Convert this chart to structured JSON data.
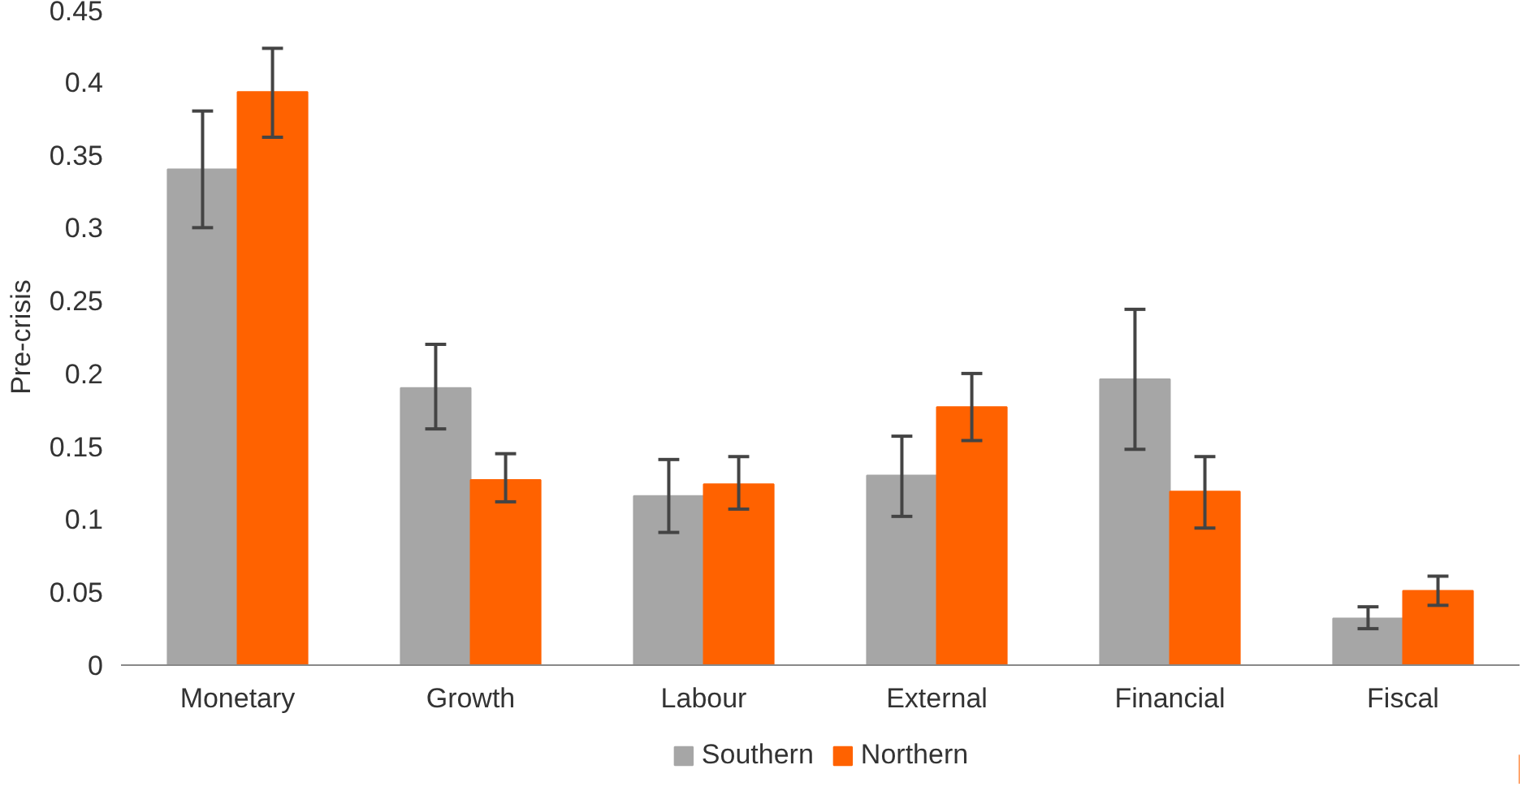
{
  "chart_data": {
    "type": "bar",
    "ylabel": "Pre-crisis",
    "categories": [
      "Monetary",
      "Growth",
      "Labour",
      "External",
      "Financial",
      "Fiscal"
    ],
    "series": [
      {
        "name": "Southern",
        "color": "#a6a6a6",
        "values": [
          0.34,
          0.19,
          0.116,
          0.13,
          0.196,
          0.032
        ],
        "errors": [
          [
            0.3,
            0.38
          ],
          [
            0.162,
            0.22
          ],
          [
            0.091,
            0.141
          ],
          [
            0.102,
            0.157
          ],
          [
            0.148,
            0.244
          ],
          [
            0.025,
            0.04
          ]
        ]
      },
      {
        "name": "Northern",
        "color": "#ff6200",
        "values": [
          0.393,
          0.127,
          0.124,
          0.177,
          0.119,
          0.051
        ],
        "errors": [
          [
            0.362,
            0.423
          ],
          [
            0.112,
            0.145
          ],
          [
            0.107,
            0.143
          ],
          [
            0.154,
            0.2
          ],
          [
            0.094,
            0.143
          ],
          [
            0.041,
            0.061
          ]
        ]
      }
    ],
    "ylim": [
      0,
      0.45
    ],
    "yticks": [
      0,
      0.05,
      0.1,
      0.15,
      0.2,
      0.25,
      0.3,
      0.35,
      0.4,
      0.45
    ],
    "grid": false,
    "legend": "bottom"
  }
}
